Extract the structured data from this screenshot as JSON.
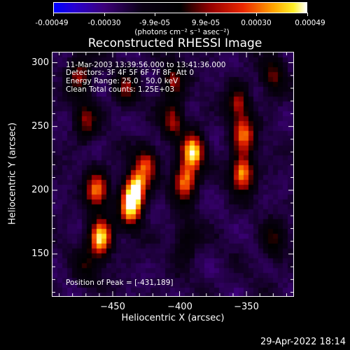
{
  "colorbar": {
    "tick_labels": [
      "-0.00049",
      "-0.00030",
      "-9.9e-05",
      "9.9e-05",
      "0.00030",
      "0.00049"
    ],
    "units": "(photons cm⁻² s⁻¹ asec⁻²)"
  },
  "info": {
    "time": "11-Mar-2003 13:39:56.000 to 13:41:36.000",
    "detectors": "Detectors: 3F 4F 5F 6F 7F 8F, Att 0",
    "energy": "Energy Range: 25.0 - 50.0 keV",
    "algorithm": "Clean    Total counts: 1.25E+03",
    "peak": "Position of Peak = [-431,189]"
  },
  "footer": "29-Apr-2022 18:14",
  "chart_data": {
    "type": "heatmap",
    "title": "Reconstructed RHESSI Image",
    "xlabel": "Heliocentric X (arcsec)",
    "ylabel": "Heliocentric Y (arcsec)",
    "xlim": [
      -495,
      -315
    ],
    "ylim": [
      117,
      308
    ],
    "x_ticks": [
      -450,
      -400,
      -350
    ],
    "y_ticks": [
      150,
      200,
      250,
      300
    ],
    "zlim": [
      -0.00049,
      0.00049
    ],
    "colormap": "blue-black-red-yellow-white",
    "peak": [
      -431,
      189
    ],
    "sources": [
      {
        "x": -459,
        "y": 163,
        "intensity": 1.0
      },
      {
        "x": -462,
        "y": 200,
        "intensity": 0.75
      },
      {
        "x": -433,
        "y": 201,
        "intensity": 0.95
      },
      {
        "x": -437,
        "y": 186,
        "intensity": 0.85
      },
      {
        "x": -425,
        "y": 220,
        "intensity": 0.6
      },
      {
        "x": -390,
        "y": 230,
        "intensity": 0.95
      },
      {
        "x": -396,
        "y": 207,
        "intensity": 0.8
      },
      {
        "x": -405,
        "y": 255,
        "intensity": 0.5
      },
      {
        "x": -353,
        "y": 213,
        "intensity": 0.85
      },
      {
        "x": -352,
        "y": 243,
        "intensity": 0.7
      },
      {
        "x": -356,
        "y": 268,
        "intensity": 0.5
      },
      {
        "x": -470,
        "y": 255,
        "intensity": 0.45
      },
      {
        "x": -475,
        "y": 290,
        "intensity": 0.5
      },
      {
        "x": -440,
        "y": 280,
        "intensity": 0.4
      },
      {
        "x": -405,
        "y": 285,
        "intensity": 0.45
      },
      {
        "x": -330,
        "y": 290,
        "intensity": 0.4
      },
      {
        "x": -330,
        "y": 160,
        "intensity": 0.35
      },
      {
        "x": -395,
        "y": 160,
        "intensity": 0.3
      },
      {
        "x": -470,
        "y": 140,
        "intensity": 0.3
      }
    ]
  }
}
